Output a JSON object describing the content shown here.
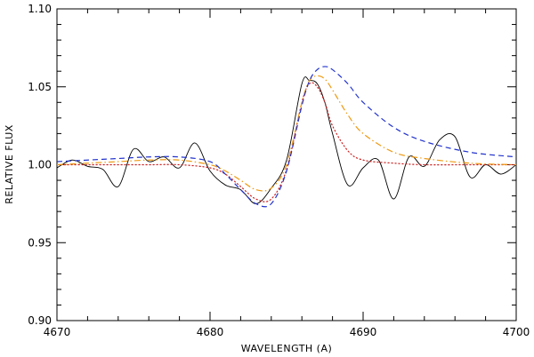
{
  "chart_data": {
    "type": "line",
    "title": "",
    "xlabel": "WAVELENGTH (A)",
    "ylabel": "RELATIVE FLUX",
    "xlim": [
      4670,
      4700
    ],
    "ylim": [
      0.9,
      1.1
    ],
    "x_ticks": [
      4670,
      4680,
      4690,
      4700
    ],
    "x_tick_labels": [
      "4670",
      "4680",
      "4690",
      "4700"
    ],
    "y_ticks": [
      0.9,
      0.95,
      1.0,
      1.05,
      1.1
    ],
    "y_tick_labels": [
      "0.90",
      "0.95",
      "1.00",
      "1.05",
      "1.10"
    ],
    "grid": false,
    "series": [
      {
        "style": "solid",
        "color": "#000000",
        "x": [
          4670,
          4671,
          4672,
          4673,
          4674,
          4675,
          4676,
          4677,
          4678,
          4679,
          4680,
          4681,
          4682,
          4683,
          4684,
          4685,
          4686,
          4686.5,
          4687,
          4687.5,
          4688,
          4689,
          4690,
          4691,
          4692,
          4693,
          4694,
          4695,
          4696,
          4697,
          4698,
          4699,
          4700
        ],
        "y": [
          0.998,
          1.003,
          0.999,
          0.997,
          0.986,
          1.01,
          1.002,
          1.005,
          0.998,
          1.014,
          0.996,
          0.987,
          0.984,
          0.975,
          0.985,
          1.003,
          1.052,
          1.054,
          1.052,
          1.04,
          1.02,
          0.987,
          0.998,
          1.003,
          0.978,
          1.005,
          0.999,
          1.016,
          1.018,
          0.992,
          1.0,
          0.994,
          1.0
        ]
      },
      {
        "style": "dotted",
        "color": "#cc2222",
        "x": [
          4670,
          4672,
          4674,
          4676,
          4678,
          4680,
          4681,
          4682,
          4683,
          4684,
          4685,
          4686,
          4686.5,
          4687,
          4687.5,
          4688,
          4689,
          4690,
          4692,
          4694,
          4697,
          4700
        ],
        "y": [
          1.0,
          1.0,
          1.0,
          1.0,
          1.0,
          0.998,
          0.994,
          0.986,
          0.978,
          0.978,
          0.997,
          1.04,
          1.052,
          1.05,
          1.04,
          1.025,
          1.009,
          1.003,
          1.001,
          1.0,
          1.0,
          1.0
        ]
      },
      {
        "style": "dashdot",
        "color": "#ee9911",
        "x": [
          4670,
          4672,
          4674,
          4676,
          4678,
          4680,
          4681,
          4682,
          4683,
          4684,
          4685,
          4686,
          4686.5,
          4687,
          4687.5,
          4688,
          4689,
          4690,
          4692,
          4694,
          4697,
          4700
        ],
        "y": [
          1.0,
          1.001,
          1.002,
          1.003,
          1.003,
          1.0,
          0.996,
          0.99,
          0.984,
          0.985,
          1.0,
          1.04,
          1.054,
          1.057,
          1.055,
          1.048,
          1.032,
          1.02,
          1.008,
          1.004,
          1.001,
          1.0
        ]
      },
      {
        "style": "dashed",
        "color": "#2233cc",
        "x": [
          4670,
          4672,
          4674,
          4676,
          4678,
          4680,
          4681,
          4682,
          4683,
          4684,
          4685,
          4686,
          4686.5,
          4687,
          4687.5,
          4688,
          4689,
          4690,
          4692,
          4694,
          4697,
          4700
        ],
        "y": [
          1.002,
          1.003,
          1.004,
          1.005,
          1.005,
          1.002,
          0.994,
          0.984,
          0.975,
          0.975,
          0.996,
          1.038,
          1.054,
          1.061,
          1.063,
          1.061,
          1.052,
          1.04,
          1.024,
          1.015,
          1.008,
          1.005
        ]
      }
    ]
  }
}
